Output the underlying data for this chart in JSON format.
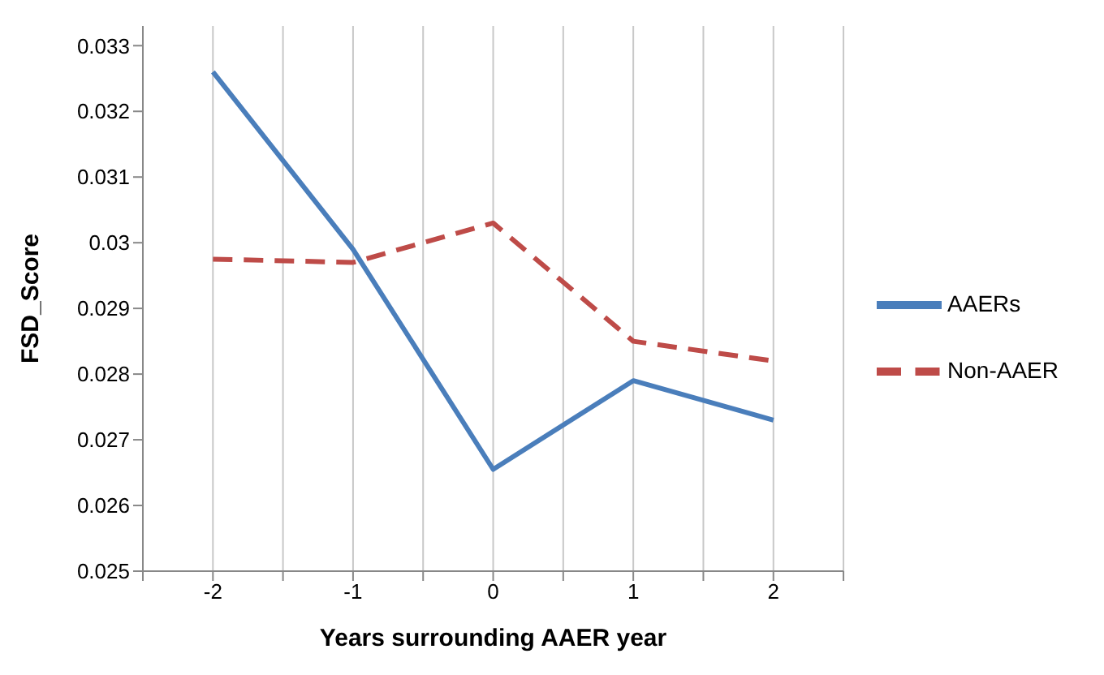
{
  "chart_data": {
    "type": "line",
    "xlabel": "Years surrounding AAER year",
    "ylabel": "FSD_Score",
    "x": [
      -2,
      -1,
      0,
      1,
      2
    ],
    "series": [
      {
        "name": "AAERs",
        "color": "#4a7ebb",
        "values": [
          0.0326,
          0.0299,
          0.02655,
          0.0279,
          0.0273
        ],
        "line_style": "solid"
      },
      {
        "name": "Non-AAER",
        "color": "#be4b48",
        "values": [
          0.02975,
          0.0297,
          0.0303,
          0.0285,
          0.0282
        ],
        "line_style": "dashed"
      }
    ],
    "xlim": [
      -2.5,
      2.5
    ],
    "xticks": [
      {
        "value": -2.5,
        "label": null
      },
      -2,
      {
        "value": -1.5,
        "label": null
      },
      -1,
      {
        "value": -0.5,
        "label": null
      },
      0,
      {
        "value": 0.5,
        "label": null
      },
      1,
      {
        "value": 1.5,
        "label": null
      },
      2,
      {
        "value": 2.5,
        "label": null
      }
    ],
    "ylim": [
      0.025,
      0.0333
    ],
    "yticks": [
      0.025,
      0.026,
      0.027,
      0.028,
      0.029,
      0.03,
      0.031,
      0.032,
      0.033
    ],
    "grid": "x",
    "legend": "right",
    "marker": "none"
  }
}
